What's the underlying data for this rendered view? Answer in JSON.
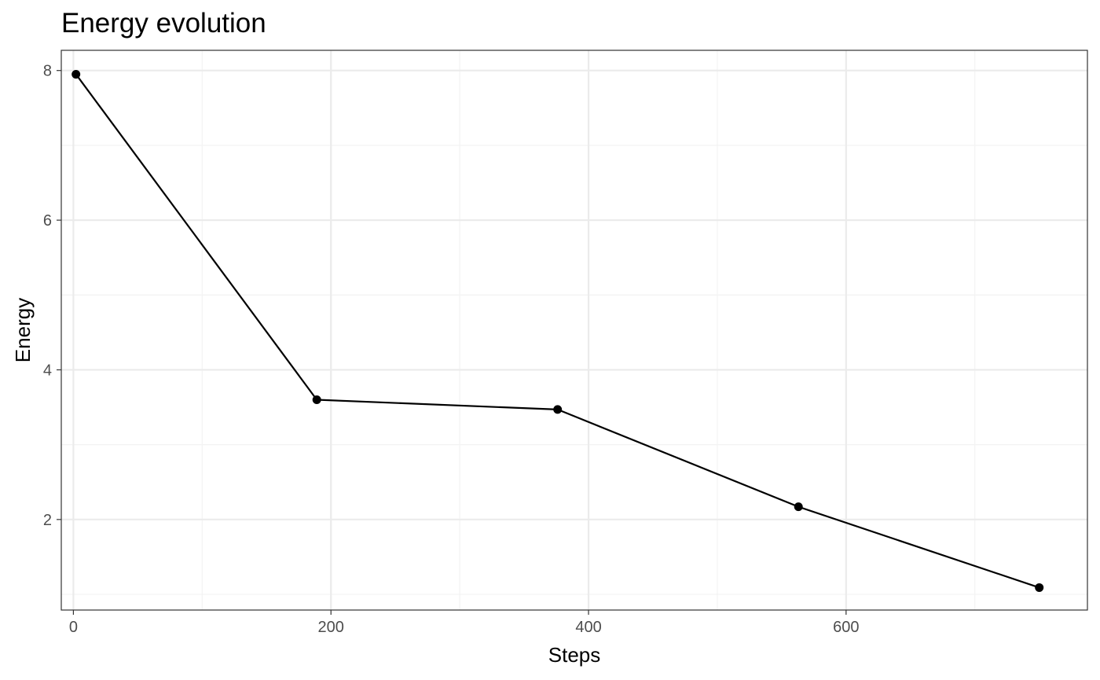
{
  "chart_data": {
    "type": "line",
    "title": "Energy evolution",
    "xlabel": "Steps",
    "ylabel": "Energy",
    "xlim": [
      -9.4,
      787.4
    ],
    "ylim": [
      0.79,
      8.27
    ],
    "x_ticks": [
      0,
      200,
      400,
      600
    ],
    "x_tick_labels": [
      "0",
      "200",
      "400",
      "600"
    ],
    "x_minor_ticks": [
      100,
      300,
      500,
      700
    ],
    "y_ticks": [
      2,
      4,
      6,
      8
    ],
    "y_tick_labels": [
      "2",
      "4",
      "6",
      "8"
    ],
    "y_minor_ticks": [
      1,
      3,
      5,
      7
    ],
    "grid": true,
    "legend": "none",
    "series": [
      {
        "x": [
          2,
          189,
          376,
          563,
          750
        ],
        "y": [
          7.95,
          3.6,
          3.47,
          2.17,
          1.09
        ],
        "color": "#000000",
        "markers": true
      }
    ]
  },
  "colors": {
    "background": "#ffffff",
    "panel_border": "#333333",
    "grid_major": "#ebebeb",
    "grid_minor": "#f3f3f3",
    "tick_text": "#4d4d4d",
    "line": "#000000"
  }
}
